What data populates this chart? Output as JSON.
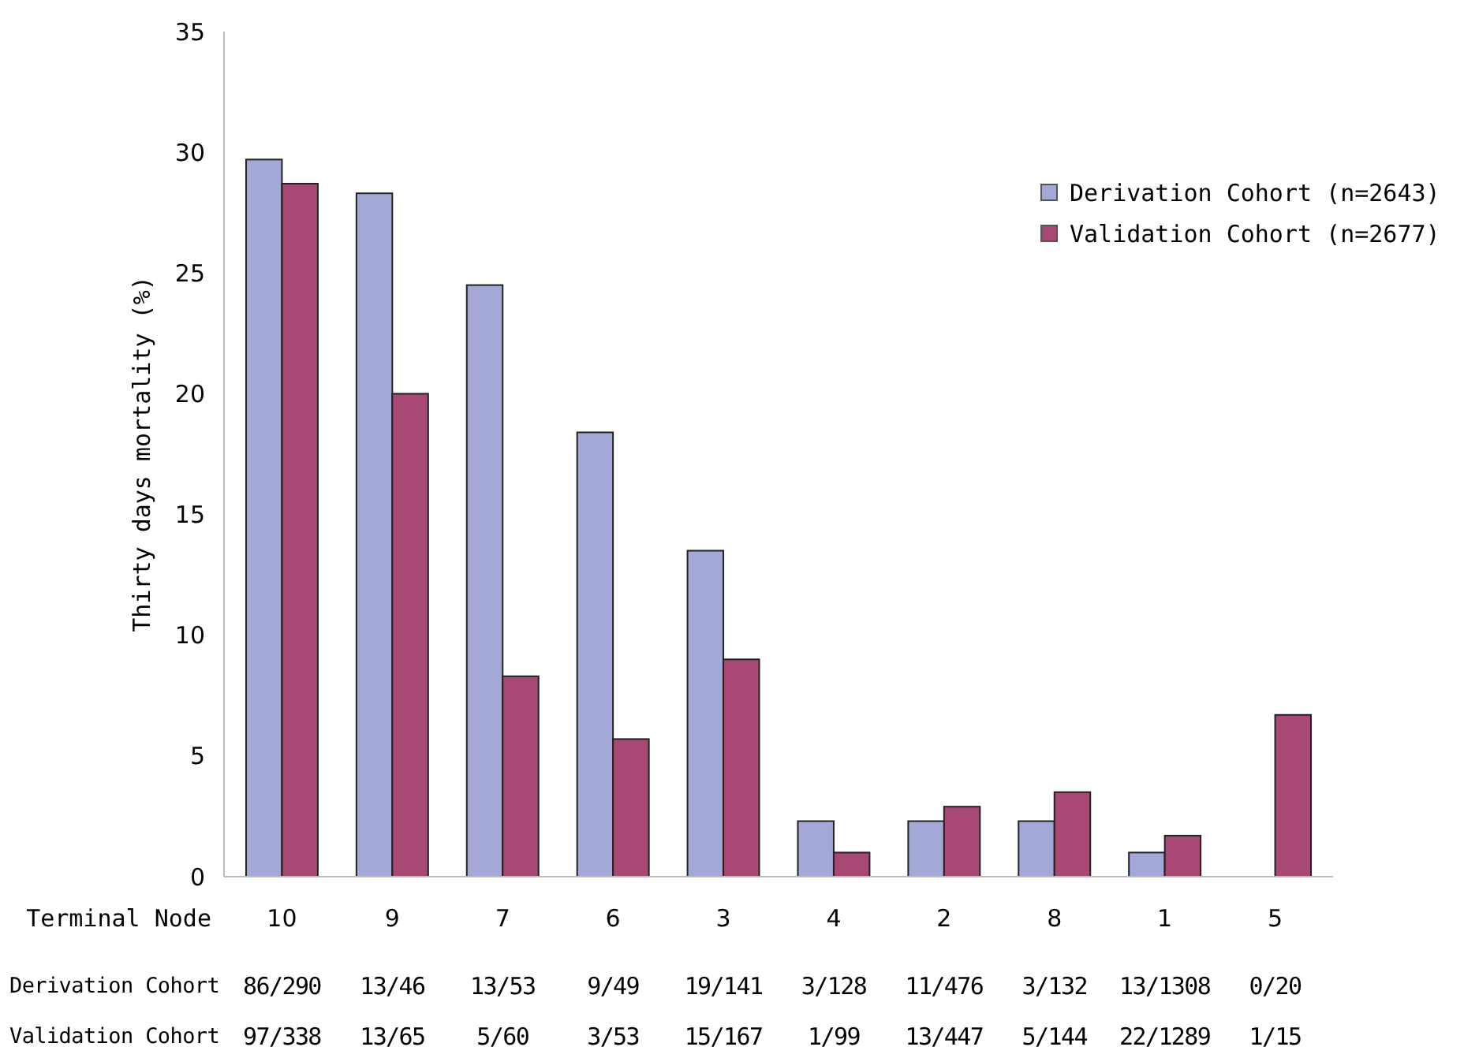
{
  "chart_data": {
    "type": "bar",
    "ylabel": "Thirty days mortality (%)",
    "xlabel": "Terminal Node",
    "categories": [
      "10",
      "9",
      "7",
      "6",
      "3",
      "4",
      "2",
      "8",
      "1",
      "5"
    ],
    "series": [
      {
        "name": "Derivation Cohort (n=2643)",
        "color": "#a3a8d6",
        "values": [
          29.7,
          28.3,
          24.5,
          18.4,
          13.5,
          2.3,
          2.3,
          2.3,
          1.0,
          0
        ],
        "value_labels": [
          "86/290",
          "13/46",
          "13/53",
          "9/49",
          "19/141",
          "3/128",
          "11/476",
          "3/132",
          "13/1308",
          "0/20"
        ]
      },
      {
        "name": "Validation Cohort (n=2677)",
        "color": "#a84874",
        "values": [
          28.7,
          20.0,
          8.3,
          5.7,
          9.0,
          1.0,
          2.9,
          3.5,
          1.7,
          6.7
        ],
        "value_labels": [
          "97/338",
          "13/65",
          "5/60",
          "3/53",
          "15/167",
          "1/99",
          "13/447",
          "5/144",
          "22/1289",
          "1/15"
        ]
      }
    ],
    "annotations": [
      "Derivation Cohort",
      "Validation Cohort"
    ],
    "ylim": [
      0,
      35
    ],
    "yticks": [
      0,
      5,
      10,
      15,
      20,
      25,
      30,
      35
    ],
    "legend": "top right"
  }
}
